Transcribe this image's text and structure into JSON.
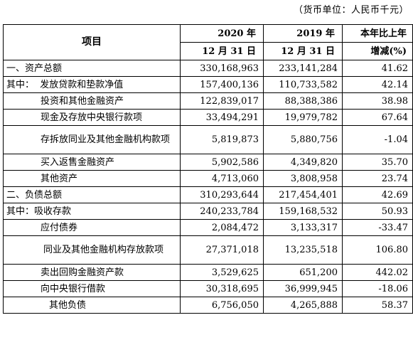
{
  "unit_note": "（货币单位：人民币千元）",
  "header": {
    "item": "项目",
    "y2020_line1": "2020 年",
    "y2020_line2": "12 月 31 日",
    "y2019_line1": "2019 年",
    "y2019_line2": "12 月 31 日",
    "change_line1": "本年比上年",
    "change_line2": "增减(%)"
  },
  "rows": [
    {
      "label": "一、资产总额",
      "v2020": "330,168,963",
      "v2019": "233,141,284",
      "change": "41.62"
    },
    {
      "label": "其中：  发放贷款和垫款净值",
      "v2020": "157,400,136",
      "v2019": "110,733,582",
      "change": "42.14"
    },
    {
      "label": "投资和其他金融资产",
      "v2020": "122,839,017",
      "v2019": "88,388,386",
      "change": "38.98"
    },
    {
      "label": "现金及存放中央银行款项",
      "v2020": "33,494,291",
      "v2019": "19,979,782",
      "change": "67.64"
    },
    {
      "label": "存拆放同业及其他金融机构款项",
      "v2020": "5,819,873",
      "v2019": "5,880,756",
      "change": "-1.04"
    },
    {
      "label": "买入返售金融资产",
      "v2020": "5,902,586",
      "v2019": "4,349,820",
      "change": "35.70"
    },
    {
      "label": "其他资产",
      "v2020": "4,713,060",
      "v2019": "3,808,958",
      "change": "23.74"
    },
    {
      "label": "二、负债总额",
      "v2020": "310,293,644",
      "v2019": "217,454,401",
      "change": "42.69"
    },
    {
      "label": "其中：吸收存款",
      "v2020": "240,233,784",
      "v2019": "159,168,532",
      "change": "50.93"
    },
    {
      "label": "应付债券",
      "v2020": "2,084,472",
      "v2019": "3,133,317",
      "change": "-33.47"
    },
    {
      "label": "同业及其他金融机构存放款项",
      "v2020": "27,371,018",
      "v2019": "13,235,518",
      "change": "106.80"
    },
    {
      "label": "卖出回购金融资产款",
      "v2020": "3,529,625",
      "v2019": "651,200",
      "change": "442.02"
    },
    {
      "label": "向中央银行借款",
      "v2020": "30,318,695",
      "v2019": "36,999,945",
      "change": "-18.06"
    },
    {
      "label": "其他负债",
      "v2020": "6,756,050",
      "v2019": "4,265,888",
      "change": "58.37"
    }
  ]
}
